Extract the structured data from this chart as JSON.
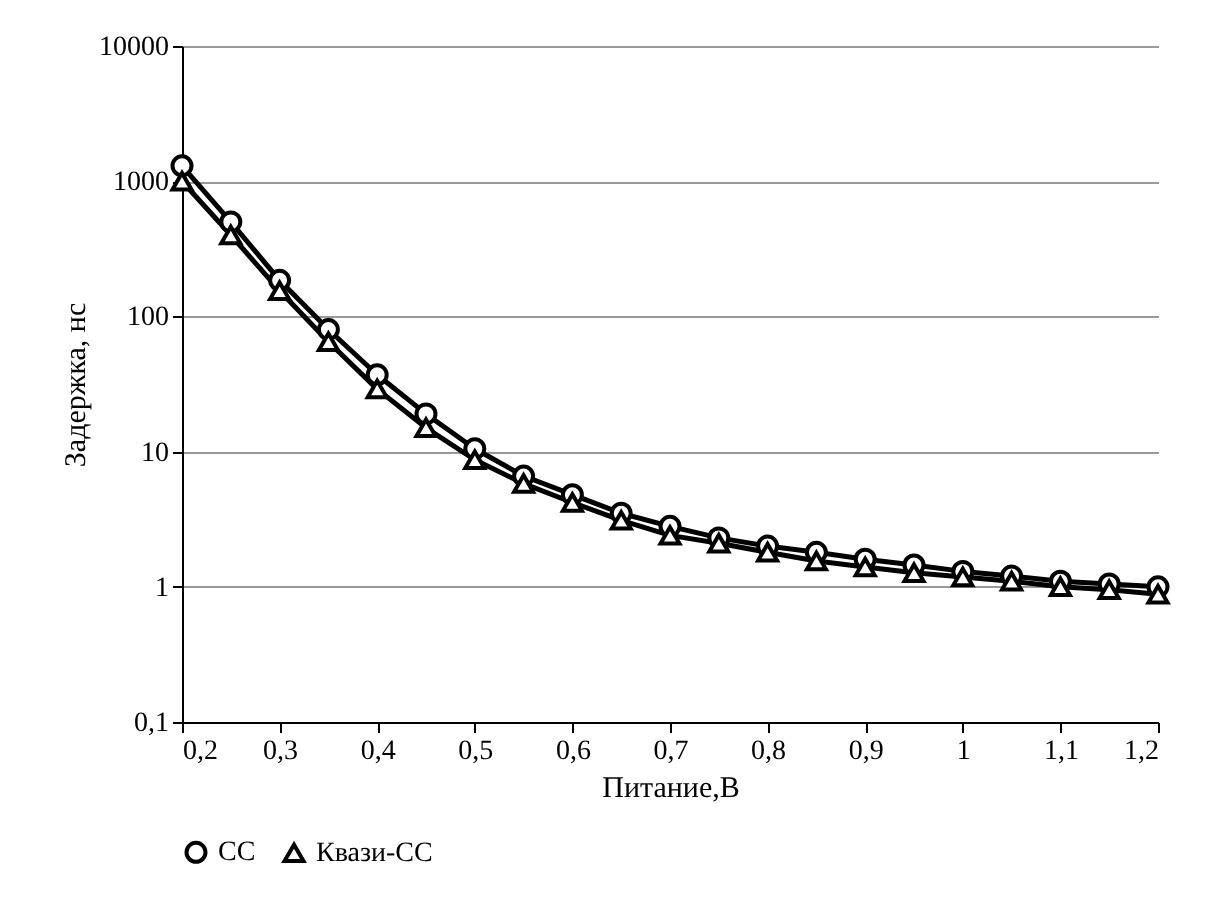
{
  "chart_data": {
    "type": "line",
    "xlabel": "Питание,В",
    "ylabel": "Задержка, нс",
    "x": [
      0.2,
      0.25,
      0.3,
      0.35,
      0.4,
      0.45,
      0.5,
      0.55,
      0.6,
      0.65,
      0.7,
      0.75,
      0.8,
      0.85,
      0.9,
      0.95,
      1.0,
      1.05,
      1.1,
      1.15,
      1.2
    ],
    "series": [
      {
        "name": "СС",
        "color": "#000000",
        "marker": "circle",
        "values": [
          1300,
          500,
          185,
          80,
          37,
          19,
          10.5,
          6.6,
          4.8,
          3.5,
          2.8,
          2.3,
          2.0,
          1.8,
          1.6,
          1.45,
          1.3,
          1.2,
          1.1,
          1.05,
          1.0
        ]
      },
      {
        "name": "Квази-СС",
        "color": "#000000",
        "marker": "triangle",
        "values": [
          1000,
          400,
          155,
          65,
          29,
          15,
          8.7,
          5.8,
          4.2,
          3.1,
          2.4,
          2.1,
          1.8,
          1.55,
          1.4,
          1.27,
          1.18,
          1.1,
          1.0,
          0.95,
          0.88
        ]
      }
    ],
    "log": "y",
    "xlim": [
      0.2,
      1.2
    ],
    "ylim": [
      0.1,
      10000
    ],
    "xticks": [
      {
        "value": 0.2,
        "label": "0,2"
      },
      {
        "value": 0.3,
        "label": "0,3"
      },
      {
        "value": 0.4,
        "label": "0,4"
      },
      {
        "value": 0.5,
        "label": "0,5"
      },
      {
        "value": 0.6,
        "label": "0,6"
      },
      {
        "value": 0.7,
        "label": "0,7"
      },
      {
        "value": 0.8,
        "label": "0,8"
      },
      {
        "value": 0.9,
        "label": "0,9"
      },
      1,
      {
        "value": 1.1,
        "label": "1,1"
      },
      {
        "value": 1.2,
        "label": "1,2"
      }
    ],
    "yticks": [
      {
        "value": 0.1,
        "label": "0,1"
      },
      1,
      10,
      100,
      1000,
      10000
    ],
    "grid": "y",
    "legend": "bottom",
    "line_style": "solid"
  }
}
